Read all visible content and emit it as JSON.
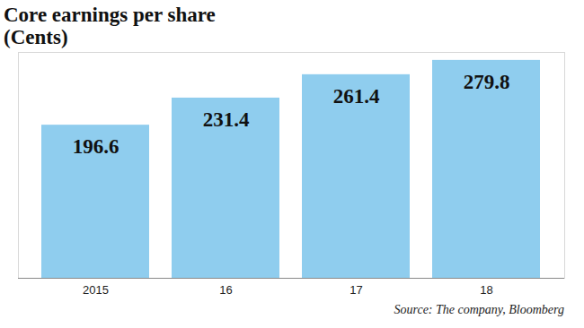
{
  "chart_data": {
    "type": "bar",
    "title": "Core earnings per share",
    "subtitle": "(Cents)",
    "categories": [
      "2015",
      "16",
      "17",
      "18"
    ],
    "values": [
      196.6,
      231.4,
      261.4,
      279.8
    ],
    "color": "#8fcdee",
    "ylim": [
      0,
      290
    ],
    "yticks": [],
    "grid": false,
    "data_labels": true,
    "tick_labels": "x",
    "caption": "Source: The company, Bloomberg"
  }
}
